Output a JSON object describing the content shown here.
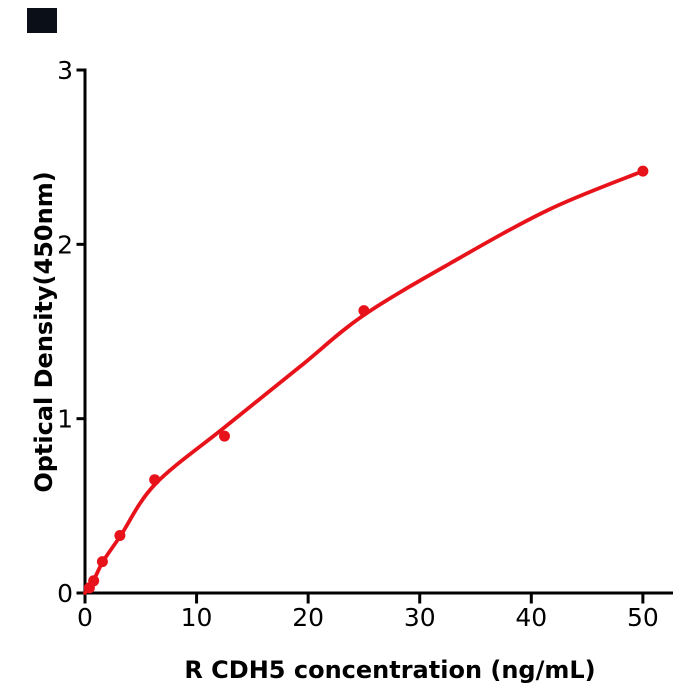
{
  "figure": {
    "background": "#ffffff",
    "corner_mark_color": "#0b0f17"
  },
  "chart_data": {
    "type": "scatter",
    "title": "",
    "xlabel": "R  CDH5 concentration (ng/mL)",
    "ylabel": "Optical Density(450nm)",
    "x_ticks": [
      0,
      10,
      20,
      30,
      40,
      50
    ],
    "y_ticks": [
      0,
      1,
      2,
      3
    ],
    "xlim": [
      0,
      52.7
    ],
    "ylim": [
      0,
      3
    ],
    "grid": false,
    "legend": null,
    "accent_color": "#e8131a",
    "axis_color": "#000000",
    "marker_radius": 5.5,
    "points": [
      {
        "x": 0.39,
        "y": 0.03
      },
      {
        "x": 0.78,
        "y": 0.07
      },
      {
        "x": 1.56,
        "y": 0.18
      },
      {
        "x": 3.125,
        "y": 0.33
      },
      {
        "x": 6.25,
        "y": 0.65
      },
      {
        "x": 12.5,
        "y": 0.9
      },
      {
        "x": 25,
        "y": 1.62
      },
      {
        "x": 50,
        "y": 2.42
      }
    ],
    "fit_curve": [
      [
        0,
        0
      ],
      [
        0.9,
        0.09
      ],
      [
        1.6,
        0.18
      ],
      [
        3.2,
        0.33
      ],
      [
        6.3,
        0.625
      ],
      [
        12.5,
        0.95
      ],
      [
        19.3,
        1.3
      ],
      [
        24.9,
        1.59
      ],
      [
        32.7,
        1.89
      ],
      [
        41.6,
        2.2
      ],
      [
        50,
        2.42
      ]
    ]
  }
}
